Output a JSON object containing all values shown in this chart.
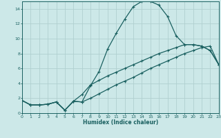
{
  "xlabel": "Humidex (Indice chaleur)",
  "background_color": "#cce8e8",
  "grid_color": "#b0d0d0",
  "line_color": "#1a6060",
  "xlim": [
    0,
    23
  ],
  "ylim": [
    0,
    15
  ],
  "xticks": [
    0,
    1,
    2,
    3,
    4,
    5,
    6,
    7,
    8,
    9,
    10,
    11,
    12,
    13,
    14,
    15,
    16,
    17,
    18,
    19,
    20,
    21,
    22,
    23
  ],
  "yticks": [
    0,
    2,
    4,
    6,
    8,
    10,
    12,
    14
  ],
  "curve1_x": [
    0,
    1,
    2,
    3,
    4,
    5,
    6,
    7,
    8,
    9,
    10,
    11,
    12,
    13,
    14,
    15,
    16,
    17,
    18,
    19,
    20,
    21,
    22,
    23
  ],
  "curve1_y": [
    1.7,
    1.1,
    1.1,
    1.2,
    1.5,
    0.4,
    1.6,
    1.5,
    3.7,
    5.6,
    8.6,
    10.7,
    12.6,
    14.3,
    15.0,
    15.0,
    14.5,
    13.0,
    10.4,
    9.2,
    9.2,
    9.0,
    8.4,
    6.5
  ],
  "curve2_x": [
    0,
    1,
    2,
    3,
    4,
    5,
    6,
    7,
    8,
    9,
    10,
    11,
    12,
    13,
    14,
    15,
    16,
    17,
    18,
    19,
    20,
    21,
    22,
    23
  ],
  "curve2_y": [
    1.7,
    1.1,
    1.1,
    1.2,
    1.5,
    0.4,
    1.6,
    2.5,
    3.8,
    4.4,
    5.0,
    5.5,
    6.0,
    6.5,
    7.0,
    7.5,
    8.0,
    8.4,
    8.8,
    9.2,
    9.2,
    9.0,
    8.4,
    6.5
  ],
  "curve3_x": [
    0,
    1,
    2,
    3,
    4,
    5,
    6,
    7,
    8,
    9,
    10,
    11,
    12,
    13,
    14,
    15,
    16,
    17,
    18,
    19,
    20,
    21,
    22,
    23
  ],
  "curve3_y": [
    1.7,
    1.1,
    1.1,
    1.2,
    1.5,
    0.4,
    1.6,
    1.5,
    2.0,
    2.6,
    3.2,
    3.8,
    4.3,
    4.8,
    5.4,
    6.0,
    6.5,
    7.0,
    7.5,
    8.0,
    8.4,
    8.8,
    9.0,
    6.5
  ]
}
